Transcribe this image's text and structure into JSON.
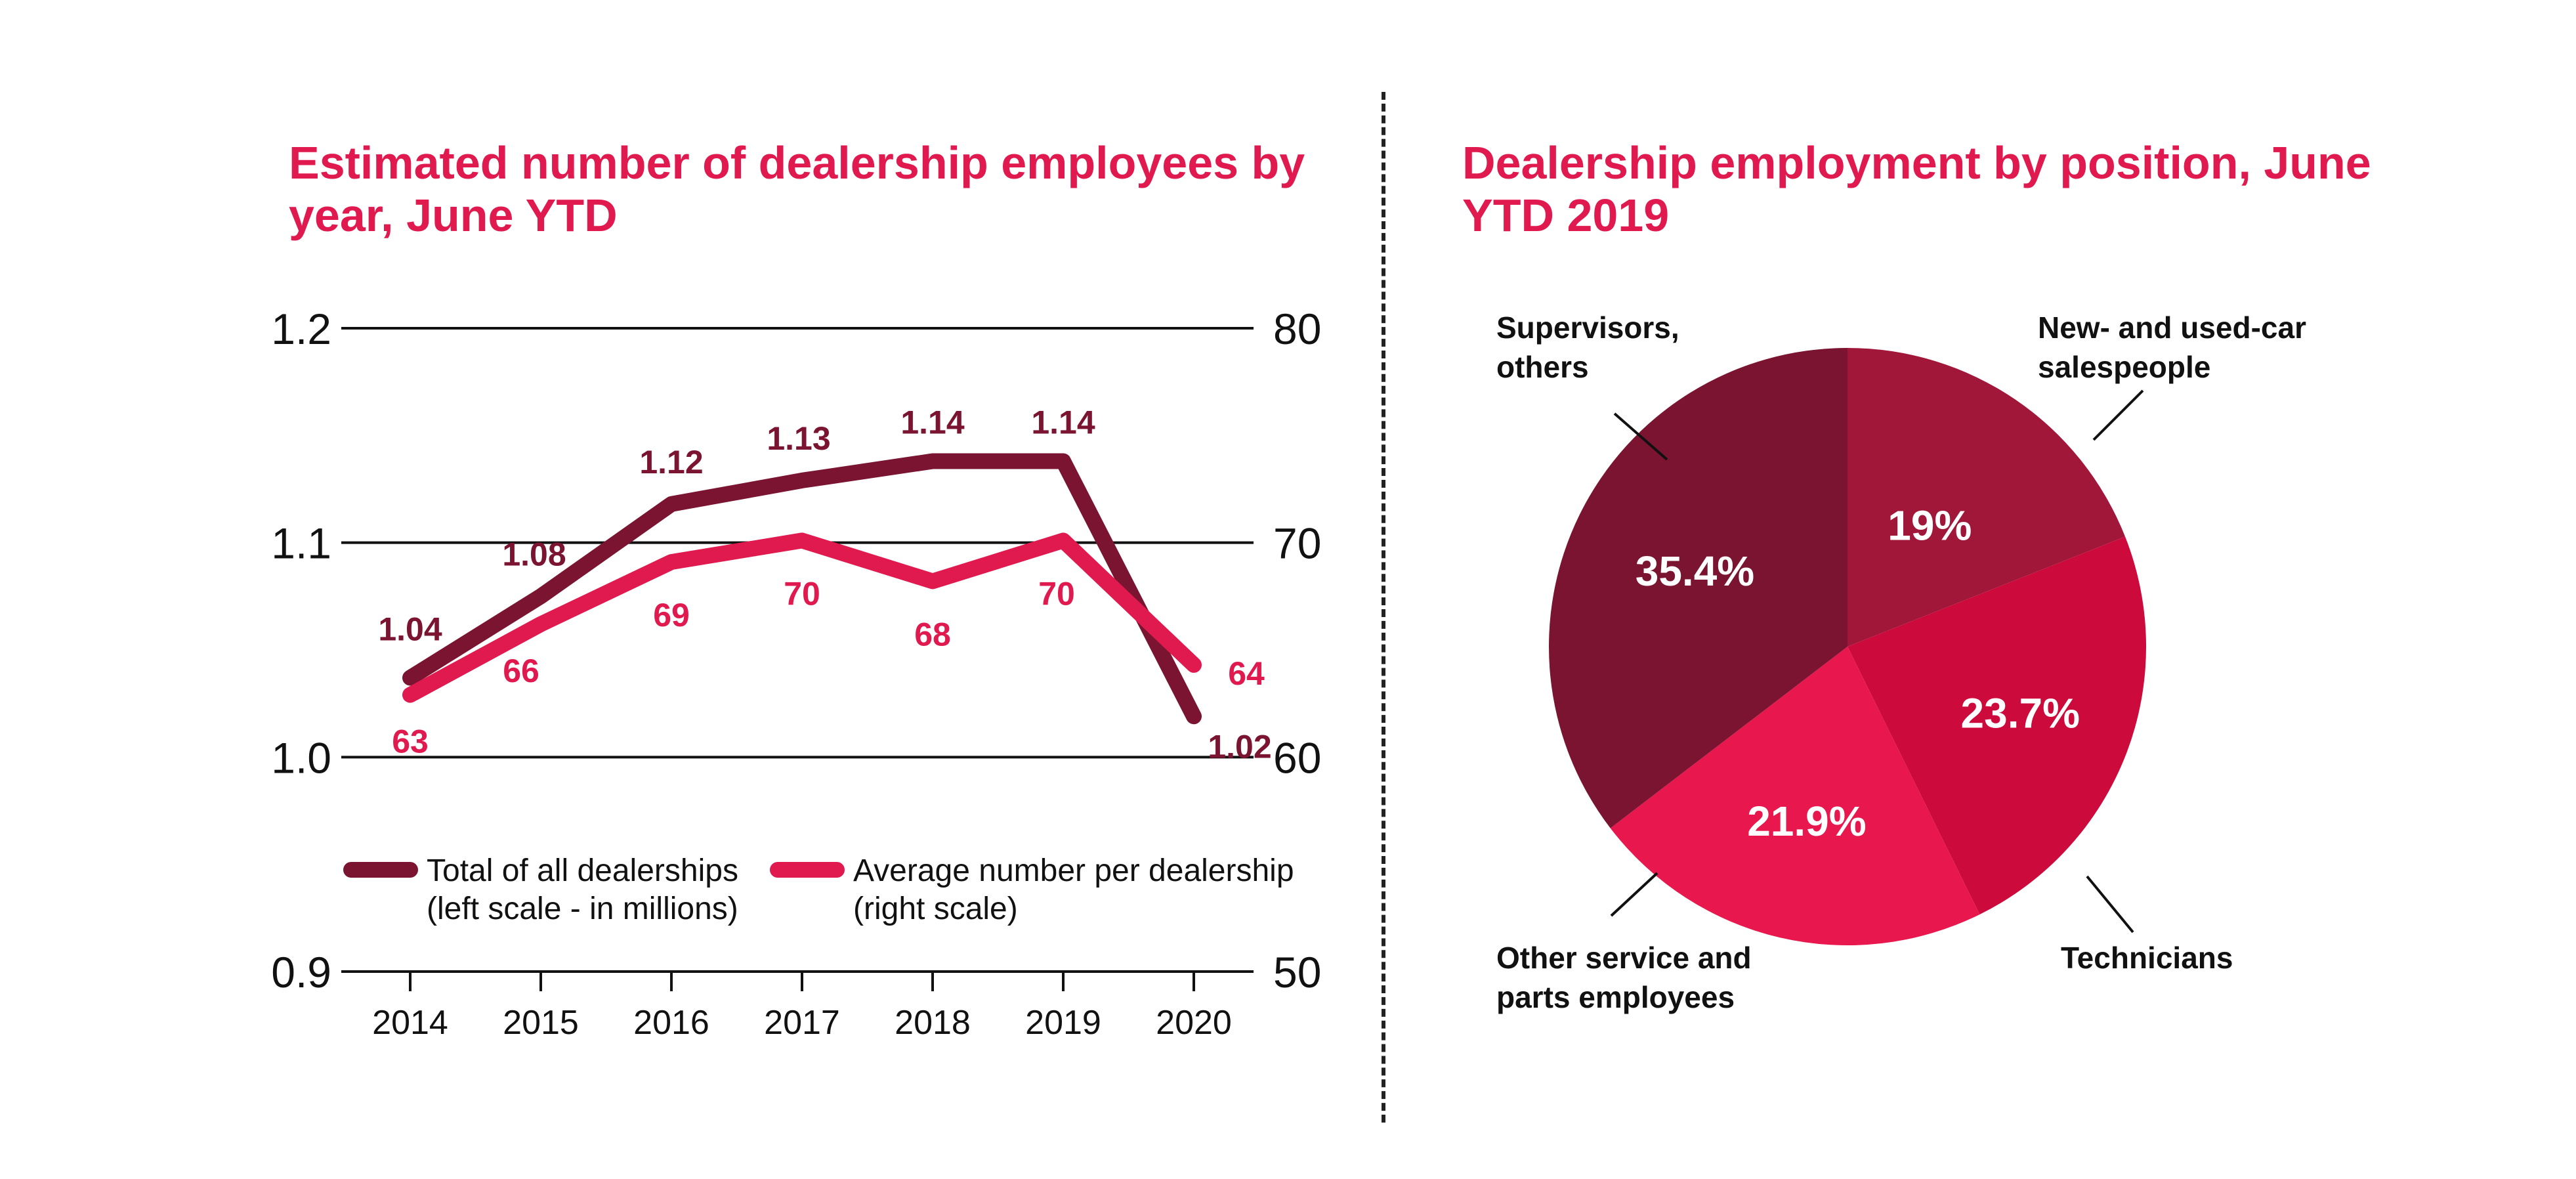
{
  "chart_data": [
    {
      "type": "line",
      "title": "Estimated number of dealership employees by year, June YTD",
      "categories": [
        "2014",
        "2015",
        "2016",
        "2017",
        "2018",
        "2019",
        "2020"
      ],
      "left_axis": {
        "ticks": [
          "1.2",
          "1.1",
          "1.0",
          "0.9"
        ],
        "tick_values": [
          1.2,
          1.1,
          1.0,
          0.9
        ],
        "ylim": [
          0.9,
          1.2
        ]
      },
      "right_axis": {
        "ticks": [
          "80",
          "70",
          "60",
          "50"
        ],
        "tick_values": [
          80,
          70,
          60,
          50
        ],
        "ylim": [
          50,
          80
        ]
      },
      "grid": true,
      "series": [
        {
          "name": "Total of all dealerships",
          "legend_line1": "Total of all dealerships",
          "legend_line2": "(left scale - in millions)",
          "axis": "left",
          "color": "#7a1431",
          "values": [
            1.037,
            1.075,
            1.118,
            1.129,
            1.138,
            1.138,
            1.019
          ],
          "labels": [
            "1.04",
            "1.08",
            "1.12",
            "1.13",
            "1.14",
            "1.14",
            "1.02"
          ]
        },
        {
          "name": "Average number per dealership",
          "legend_line1": "Average number per dealership",
          "legend_line2": "(right scale)",
          "axis": "right",
          "color": "#e01a4f",
          "values": [
            62.9,
            66.2,
            69.1,
            70.1,
            68.2,
            70.1,
            64.3
          ],
          "labels": [
            "63",
            "66",
            "69",
            "70",
            "68",
            "70",
            "64"
          ]
        }
      ]
    },
    {
      "type": "pie",
      "title": "Dealership employment by position, June YTD 2019",
      "slices": [
        {
          "label": "New- and used-car salespeople",
          "label_lines": [
            "New- and used-car",
            "salespeople"
          ],
          "value": 19.0,
          "value_label": "19%",
          "color": "#a0173a"
        },
        {
          "label": "Technicians",
          "label_lines": [
            "Technicians"
          ],
          "value": 23.7,
          "value_label": "23.7%",
          "color": "#cc0a3c"
        },
        {
          "label": "Other service and parts employees",
          "label_lines": [
            "Other service and",
            "parts employees"
          ],
          "value": 21.9,
          "value_label": "21.9%",
          "color": "#e8174d"
        },
        {
          "label": "Supervisors, others",
          "label_lines": [
            "Supervisors,",
            "others"
          ],
          "value": 35.4,
          "value_label": "35.4%",
          "color": "#7a1431"
        }
      ]
    }
  ]
}
